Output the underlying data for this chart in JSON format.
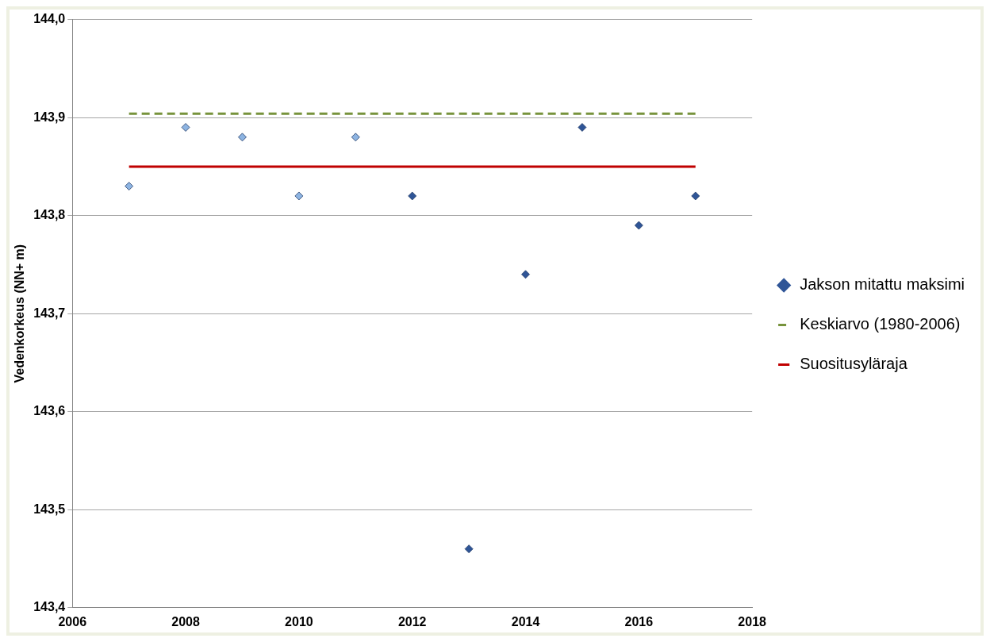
{
  "chart_data": {
    "type": "scatter",
    "ylabel": "Vedenkorkeus (NN+ m)",
    "xlim": [
      2006,
      2018
    ],
    "xticks": [
      2006,
      2008,
      2010,
      2012,
      2014,
      2016,
      2018
    ],
    "ylim": [
      143.4,
      144.0
    ],
    "yticks": [
      {
        "value": 143.4,
        "label": "143,4"
      },
      {
        "value": 143.5,
        "label": "143,5"
      },
      {
        "value": 143.6,
        "label": "143,6"
      },
      {
        "value": 143.7,
        "label": "143,7"
      },
      {
        "value": 143.8,
        "label": "143,8"
      },
      {
        "value": 143.9,
        "label": "143,9"
      },
      {
        "value": 144.0,
        "label": "144,0"
      }
    ],
    "grid": "y",
    "legend": "right",
    "marker": "diamond",
    "series": [
      {
        "name": "Jakson mitattu maksimi",
        "type": "scatter",
        "color": "#2f5597",
        "x": [
          2007,
          2008,
          2009,
          2010,
          2011,
          2012,
          2013,
          2014,
          2015,
          2016,
          2017
        ],
        "values": [
          143.83,
          143.89,
          143.88,
          143.82,
          143.88,
          143.82,
          143.46,
          143.74,
          143.89,
          143.79,
          143.82
        ],
        "colors": [
          "#8db4e2",
          "#8db4e2",
          "#8db4e2",
          "#8db4e2",
          "#8db4e2",
          "#2f5597",
          "#2f5597",
          "#2f5597",
          "#2f5597",
          "#2f5597",
          "#2f5597"
        ]
      },
      {
        "name": "Keskiarvo (1980-2006)",
        "type": "line",
        "color": "#77933c",
        "line_style": "dashed",
        "marker": "none",
        "x": [
          2007,
          2017
        ],
        "values": [
          143.904,
          143.904
        ]
      },
      {
        "name": "Suositusyläraja",
        "type": "line",
        "color": "#c00000",
        "line_style": "solid",
        "marker": "none",
        "x": [
          2007,
          2017
        ],
        "values": [
          143.85,
          143.85
        ]
      }
    ]
  }
}
